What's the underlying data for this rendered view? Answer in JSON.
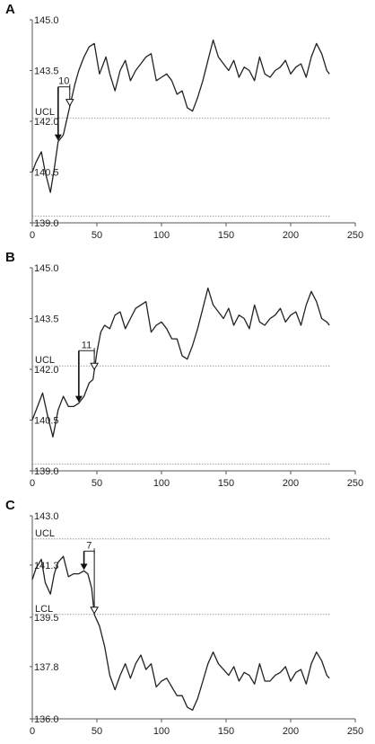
{
  "chart_data": [
    {
      "panel_label": "A",
      "type": "line",
      "xlim": [
        0,
        250
      ],
      "ylim": [
        139.0,
        145.0
      ],
      "xticks": [
        0,
        50,
        100,
        150,
        200,
        250
      ],
      "xtick_labels": [
        "0",
        "50",
        "100",
        "150",
        "200",
        "250"
      ],
      "yticks": [
        139.0,
        140.5,
        142.0,
        143.5,
        145.0
      ],
      "ytick_labels": [
        "139.0",
        "140.5",
        "142.0",
        "143.5",
        "145.0"
      ],
      "grid": false,
      "reference_lines": [
        {
          "label": "UCL",
          "y": 142.1
        },
        {
          "label": "",
          "y": 139.2
        }
      ],
      "annotation": {
        "text": "10",
        "x_start": 20,
        "x_end": 29
      },
      "series": [
        {
          "x": [
            0,
            3,
            7,
            10,
            14,
            17,
            20,
            24,
            27,
            30,
            33,
            36,
            40,
            44,
            48,
            52,
            57,
            60,
            64,
            68,
            72,
            76,
            80,
            84,
            88,
            92,
            96,
            100,
            104,
            108,
            112,
            116,
            120,
            124,
            128,
            132,
            136,
            140,
            144,
            148,
            152,
            156,
            160,
            164,
            168,
            172,
            176,
            180,
            184,
            188,
            192,
            196,
            200,
            204,
            208,
            212,
            216,
            220,
            224,
            228,
            230
          ],
          "y": [
            140.5,
            140.8,
            141.1,
            140.5,
            139.9,
            140.6,
            141.4,
            141.6,
            142.1,
            142.6,
            143.1,
            143.5,
            143.9,
            144.2,
            144.3,
            143.4,
            143.9,
            143.4,
            142.9,
            143.5,
            143.8,
            143.2,
            143.5,
            143.7,
            143.9,
            144.0,
            143.2,
            143.3,
            143.4,
            143.2,
            142.8,
            142.9,
            142.4,
            142.3,
            142.7,
            143.2,
            143.8,
            144.4,
            143.9,
            143.7,
            143.5,
            143.8,
            143.3,
            143.6,
            143.5,
            143.2,
            143.9,
            143.4,
            143.3,
            143.5,
            143.6,
            143.8,
            143.4,
            143.6,
            143.7,
            143.3,
            143.9,
            144.3,
            144.0,
            143.5,
            143.4
          ]
        }
      ]
    },
    {
      "panel_label": "B",
      "type": "line",
      "xlim": [
        0,
        250
      ],
      "ylim": [
        139.0,
        145.0
      ],
      "xticks": [
        0,
        50,
        100,
        150,
        200,
        250
      ],
      "xtick_labels": [
        "0",
        "50",
        "100",
        "150",
        "200",
        "250"
      ],
      "yticks": [
        139.0,
        140.5,
        142.0,
        143.5,
        145.0
      ],
      "ytick_labels": [
        "139.0",
        "140.5",
        "142.0",
        "143.5",
        "145.0"
      ],
      "grid": false,
      "reference_lines": [
        {
          "label": "UCL",
          "y": 142.1
        },
        {
          "label": "",
          "y": 139.2
        }
      ],
      "annotation": {
        "text": "11",
        "x_start": 36,
        "x_end": 48
      },
      "series": [
        {
          "x": [
            0,
            4,
            8,
            12,
            16,
            20,
            24,
            28,
            32,
            36,
            40,
            44,
            47,
            50,
            53,
            56,
            60,
            64,
            68,
            72,
            76,
            80,
            84,
            88,
            92,
            96,
            100,
            104,
            108,
            112,
            116,
            120,
            124,
            128,
            132,
            136,
            140,
            144,
            148,
            152,
            156,
            160,
            164,
            168,
            172,
            176,
            180,
            184,
            188,
            192,
            196,
            200,
            204,
            208,
            212,
            216,
            220,
            224,
            228,
            230
          ],
          "y": [
            140.5,
            140.9,
            141.3,
            140.6,
            140.0,
            140.8,
            141.2,
            140.9,
            140.9,
            141.0,
            141.2,
            141.6,
            141.7,
            142.5,
            143.1,
            143.3,
            143.2,
            143.6,
            143.7,
            143.2,
            143.5,
            143.8,
            143.9,
            144.0,
            143.1,
            143.3,
            143.4,
            143.2,
            142.9,
            142.9,
            142.4,
            142.3,
            142.7,
            143.2,
            143.8,
            144.4,
            143.9,
            143.7,
            143.5,
            143.8,
            143.3,
            143.6,
            143.5,
            143.2,
            143.9,
            143.4,
            143.3,
            143.5,
            143.6,
            143.8,
            143.4,
            143.6,
            143.7,
            143.3,
            143.9,
            144.3,
            144.0,
            143.5,
            143.4,
            143.3
          ]
        }
      ]
    },
    {
      "panel_label": "C",
      "type": "line",
      "xlim": [
        0,
        250
      ],
      "ylim": [
        136.0,
        143.0
      ],
      "xticks": [
        0,
        50,
        100,
        150,
        200,
        250
      ],
      "xtick_labels": [
        "0",
        "50",
        "100",
        "150",
        "200",
        "250"
      ],
      "yticks": [
        136.0,
        137.8,
        139.5,
        141.3,
        143.0
      ],
      "ytick_labels": [
        "136.0",
        "137.8",
        "139.5",
        "141.3",
        "143.0"
      ],
      "grid": false,
      "reference_lines": [
        {
          "label": "UCL",
          "y": 142.2
        },
        {
          "label": "LCL",
          "y": 139.6
        }
      ],
      "annotation": {
        "text": "7",
        "x_start": 40,
        "x_end": 48
      },
      "series": [
        {
          "x": [
            0,
            3,
            7,
            10,
            14,
            17,
            20,
            24,
            28,
            32,
            36,
            40,
            43,
            46,
            48,
            52,
            56,
            60,
            64,
            68,
            72,
            76,
            80,
            84,
            88,
            92,
            96,
            100,
            104,
            108,
            112,
            116,
            120,
            124,
            128,
            132,
            136,
            140,
            144,
            148,
            152,
            156,
            160,
            164,
            168,
            172,
            176,
            180,
            184,
            188,
            192,
            196,
            200,
            204,
            208,
            212,
            216,
            220,
            224,
            228,
            230
          ],
          "y": [
            140.8,
            141.2,
            141.5,
            140.7,
            140.3,
            141.0,
            141.4,
            141.6,
            140.9,
            141.0,
            141.0,
            141.1,
            141.0,
            140.5,
            139.6,
            139.2,
            138.5,
            137.5,
            137.0,
            137.5,
            137.9,
            137.4,
            137.9,
            138.2,
            137.7,
            137.9,
            137.1,
            137.3,
            137.4,
            137.1,
            136.8,
            136.8,
            136.4,
            136.3,
            136.7,
            137.3,
            137.9,
            138.3,
            137.9,
            137.7,
            137.5,
            137.8,
            137.3,
            137.6,
            137.5,
            137.2,
            137.9,
            137.3,
            137.3,
            137.5,
            137.6,
            137.8,
            137.3,
            137.6,
            137.7,
            137.2,
            137.9,
            138.3,
            138.0,
            137.5,
            137.4
          ]
        }
      ]
    }
  ]
}
